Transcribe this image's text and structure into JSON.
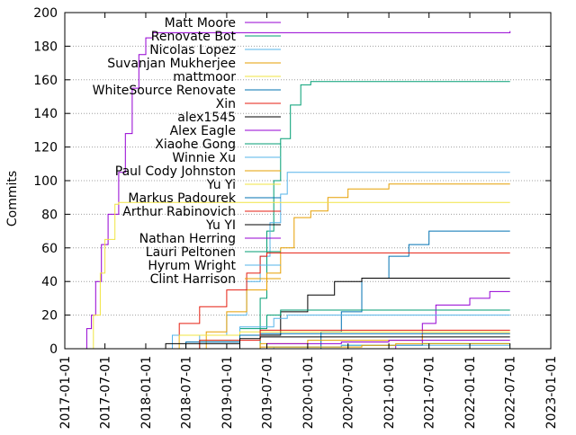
{
  "chart_data": {
    "type": "line",
    "title": "",
    "xlabel": "",
    "ylabel": "Commits",
    "x_type": "date",
    "xlim": [
      "2017-01-01",
      "2023-01-01"
    ],
    "ylim": [
      0,
      200
    ],
    "grid": true,
    "legend_position": "top-left",
    "x_ticks": [
      "2017-01-01",
      "2017-07-01",
      "2018-01-01",
      "2018-07-01",
      "2019-01-01",
      "2019-07-01",
      "2020-01-01",
      "2020-07-01",
      "2021-01-01",
      "2021-07-01",
      "2022-01-01",
      "2022-07-01",
      "2023-01-01"
    ],
    "y_ticks": [
      0,
      20,
      40,
      60,
      80,
      100,
      120,
      140,
      160,
      180,
      200
    ],
    "series": [
      {
        "name": "Matt Moore",
        "color": "#9400d3",
        "points": [
          [
            "2017-04-01",
            0
          ],
          [
            "2017-04-10",
            12
          ],
          [
            "2017-05-01",
            20
          ],
          [
            "2017-05-20",
            40
          ],
          [
            "2017-06-15",
            62
          ],
          [
            "2017-07-15",
            80
          ],
          [
            "2017-09-01",
            105
          ],
          [
            "2017-10-01",
            128
          ],
          [
            "2017-11-01",
            155
          ],
          [
            "2017-12-01",
            175
          ],
          [
            "2018-01-01",
            185
          ],
          [
            "2018-02-01",
            188
          ],
          [
            "2020-01-01",
            188
          ],
          [
            "2022-07-01",
            189
          ]
        ]
      },
      {
        "name": "Renovate Bot",
        "color": "#009e73",
        "points": [
          [
            "2019-05-01",
            0
          ],
          [
            "2019-06-01",
            30
          ],
          [
            "2019-07-01",
            70
          ],
          [
            "2019-08-01",
            100
          ],
          [
            "2019-09-01",
            125
          ],
          [
            "2019-10-15",
            145
          ],
          [
            "2019-12-01",
            157
          ],
          [
            "2020-01-15",
            159
          ],
          [
            "2022-07-01",
            159
          ]
        ]
      },
      {
        "name": "Nicolas Lopez",
        "color": "#56b4e9",
        "points": [
          [
            "2018-02-01",
            0
          ],
          [
            "2018-09-01",
            8
          ],
          [
            "2019-01-01",
            20
          ],
          [
            "2019-04-01",
            40
          ],
          [
            "2019-06-01",
            55
          ],
          [
            "2019-07-15",
            75
          ],
          [
            "2019-09-01",
            92
          ],
          [
            "2019-10-01",
            105
          ],
          [
            "2022-07-01",
            105
          ]
        ]
      },
      {
        "name": "Suvanjan Mukherjee",
        "color": "#e69f00",
        "points": [
          [
            "2018-06-01",
            0
          ],
          [
            "2018-10-01",
            10
          ],
          [
            "2019-01-01",
            22
          ],
          [
            "2019-04-01",
            35
          ],
          [
            "2019-07-01",
            45
          ],
          [
            "2019-09-01",
            60
          ],
          [
            "2019-11-01",
            78
          ],
          [
            "2020-01-15",
            82
          ],
          [
            "2020-04-01",
            90
          ],
          [
            "2020-07-01",
            95
          ],
          [
            "2021-01-01",
            98
          ],
          [
            "2022-07-01",
            98
          ]
        ]
      },
      {
        "name": "mattmoor",
        "color": "#f0e442",
        "points": [
          [
            "2017-04-15",
            0
          ],
          [
            "2017-05-10",
            20
          ],
          [
            "2017-06-10",
            45
          ],
          [
            "2017-07-01",
            65
          ],
          [
            "2017-08-15",
            86
          ],
          [
            "2017-09-01",
            87
          ],
          [
            "2022-07-01",
            87
          ]
        ]
      },
      {
        "name": "WhiteSource Renovate",
        "color": "#0072b2",
        "points": [
          [
            "2019-12-01",
            0
          ],
          [
            "2020-03-01",
            10
          ],
          [
            "2020-06-01",
            22
          ],
          [
            "2020-09-01",
            42
          ],
          [
            "2021-01-01",
            55
          ],
          [
            "2021-04-01",
            62
          ],
          [
            "2021-07-01",
            70
          ],
          [
            "2022-07-01",
            70
          ]
        ]
      },
      {
        "name": "Xin",
        "color": "#e51e10",
        "points": [
          [
            "2018-03-01",
            0
          ],
          [
            "2018-06-01",
            15
          ],
          [
            "2018-09-01",
            25
          ],
          [
            "2019-01-01",
            35
          ],
          [
            "2019-04-01",
            45
          ],
          [
            "2019-06-01",
            55
          ],
          [
            "2019-07-01",
            57
          ],
          [
            "2022-07-01",
            57
          ]
        ]
      },
      {
        "name": "alex1545",
        "color": "#000000",
        "points": [
          [
            "2018-06-01",
            0
          ],
          [
            "2019-03-01",
            8
          ],
          [
            "2019-09-01",
            22
          ],
          [
            "2020-01-01",
            32
          ],
          [
            "2020-05-01",
            40
          ],
          [
            "2020-09-01",
            42
          ],
          [
            "2022-07-01",
            42
          ]
        ]
      },
      {
        "name": "Alex Eagle",
        "color": "#9400d3",
        "points": [
          [
            "2020-10-01",
            0
          ],
          [
            "2021-02-01",
            2
          ],
          [
            "2021-06-01",
            15
          ],
          [
            "2021-08-01",
            26
          ],
          [
            "2022-01-01",
            30
          ],
          [
            "2022-04-01",
            34
          ],
          [
            "2022-07-01",
            34
          ]
        ]
      },
      {
        "name": "Xiaohe Gong",
        "color": "#009e73",
        "points": [
          [
            "2018-03-01",
            0
          ],
          [
            "2018-09-01",
            5
          ],
          [
            "2019-03-01",
            12
          ],
          [
            "2019-07-01",
            20
          ],
          [
            "2019-09-01",
            23
          ],
          [
            "2022-07-01",
            23
          ]
        ]
      },
      {
        "name": "Winnie Xu",
        "color": "#56b4e9",
        "points": [
          [
            "2018-01-01",
            0
          ],
          [
            "2018-05-01",
            8
          ],
          [
            "2019-03-01",
            13
          ],
          [
            "2019-08-01",
            18
          ],
          [
            "2019-10-01",
            20
          ],
          [
            "2022-07-01",
            20
          ]
        ]
      },
      {
        "name": "Paul Cody Johnston",
        "color": "#e69f00",
        "points": [
          [
            "2019-01-01",
            0
          ],
          [
            "2019-06-01",
            3
          ],
          [
            "2020-01-01",
            5
          ],
          [
            "2021-01-01",
            5
          ],
          [
            "2021-06-01",
            9
          ],
          [
            "2022-07-01",
            9
          ]
        ]
      },
      {
        "name": "Yu Yi",
        "color": "#f0e442",
        "points": [
          [
            "2018-04-01",
            0
          ],
          [
            "2018-06-01",
            8
          ],
          [
            "2019-03-01",
            10
          ],
          [
            "2022-07-01",
            10
          ]
        ]
      },
      {
        "name": "Markus Padourek",
        "color": "#0072b2",
        "points": [
          [
            "2018-01-01",
            0
          ],
          [
            "2018-07-01",
            4
          ],
          [
            "2019-03-01",
            8
          ],
          [
            "2019-06-01",
            9
          ],
          [
            "2022-07-01",
            9
          ]
        ]
      },
      {
        "name": "Arthur Rabinovich",
        "color": "#e51e10",
        "points": [
          [
            "2018-04-01",
            0
          ],
          [
            "2018-09-01",
            5
          ],
          [
            "2019-06-01",
            11
          ],
          [
            "2022-07-01",
            11
          ]
        ]
      },
      {
        "name": "Yu YI",
        "color": "#000000",
        "points": [
          [
            "2018-01-01",
            0
          ],
          [
            "2018-04-01",
            3
          ],
          [
            "2019-03-01",
            6
          ],
          [
            "2019-06-01",
            7
          ],
          [
            "2022-07-01",
            7
          ]
        ]
      },
      {
        "name": "Nathan Herring",
        "color": "#9400d3",
        "points": [
          [
            "2019-04-01",
            0
          ],
          [
            "2019-07-01",
            3
          ],
          [
            "2020-06-01",
            4
          ],
          [
            "2021-01-01",
            5
          ],
          [
            "2022-07-01",
            5
          ]
        ]
      },
      {
        "name": "Lauri Peltonen",
        "color": "#009e73",
        "points": [
          [
            "2019-01-01",
            0
          ],
          [
            "2019-07-01",
            1
          ],
          [
            "2020-06-01",
            2
          ],
          [
            "2021-01-01",
            2
          ],
          [
            "2021-06-01",
            3
          ],
          [
            "2022-07-01",
            3
          ]
        ]
      },
      {
        "name": "Hyrum Wright",
        "color": "#56b4e9",
        "points": [
          [
            "2019-05-01",
            0
          ],
          [
            "2019-08-01",
            1
          ],
          [
            "2020-06-01",
            2
          ],
          [
            "2022-07-01",
            2
          ]
        ]
      },
      {
        "name": "Clint Harrison",
        "color": "#e69f00",
        "points": [
          [
            "2019-01-01",
            0
          ],
          [
            "2019-06-01",
            1
          ],
          [
            "2020-09-01",
            2
          ],
          [
            "2021-02-01",
            3
          ],
          [
            "2022-07-01",
            3
          ]
        ]
      }
    ]
  }
}
